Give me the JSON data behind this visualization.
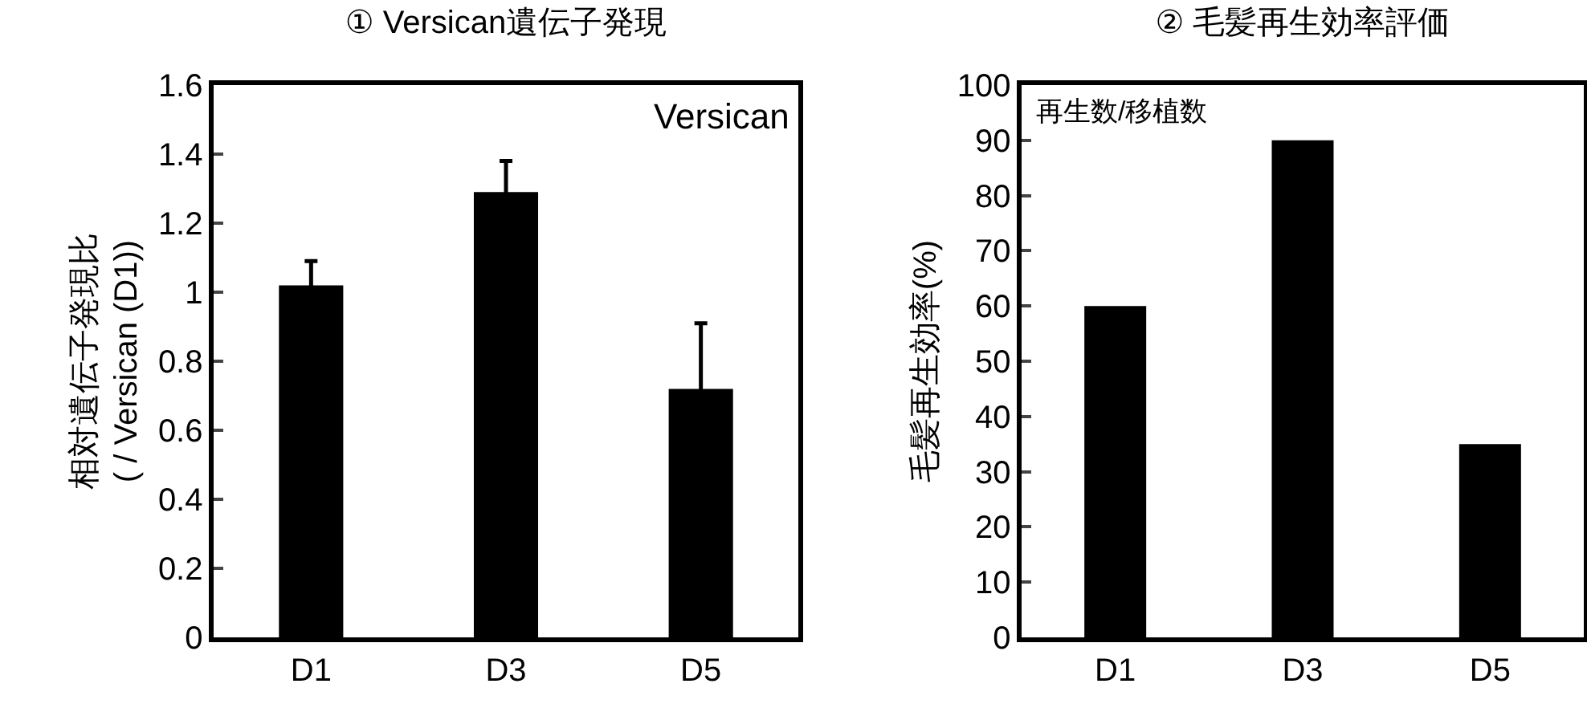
{
  "chart_data": [
    {
      "type": "bar",
      "title": "① Versican遺伝子発現",
      "ylabel": "相対遺伝子発現比\n( / Versican (D1))",
      "annotations": [
        "Versican"
      ],
      "categories": [
        "D1",
        "D3",
        "D5"
      ],
      "values": [
        1.02,
        1.29,
        0.72
      ],
      "errors": [
        0.07,
        0.09,
        0.19
      ],
      "color": "#000000",
      "ylim": [
        0,
        1.6
      ],
      "yticks": [
        0,
        0.2,
        0.4,
        0.6,
        0.8,
        1,
        1.2,
        1.4,
        1.6
      ]
    },
    {
      "type": "bar",
      "title": "② 毛髪再生効率評価",
      "ylabel": "毛髪再生効率(%)",
      "annotations": [
        "再生数/移植数"
      ],
      "categories": [
        "D1",
        "D3",
        "D5"
      ],
      "values": [
        60,
        90,
        35
      ],
      "color": "#000000",
      "ylim": [
        0,
        100
      ],
      "yticks": [
        0,
        10,
        20,
        30,
        40,
        50,
        60,
        70,
        80,
        90,
        100
      ]
    }
  ]
}
